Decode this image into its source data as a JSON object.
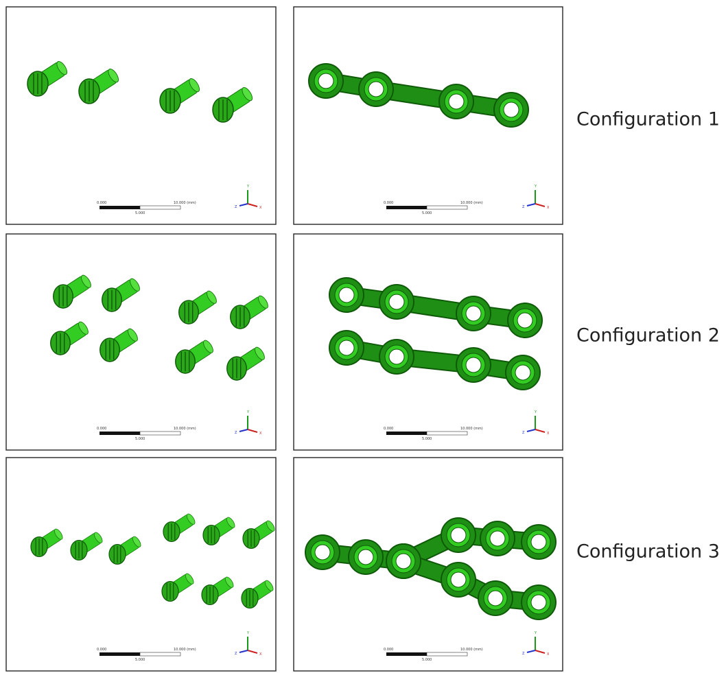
{
  "rows": [
    {
      "label": "Configuration 1",
      "panels": [
        {
          "scale": {
            "start": "0.000",
            "end": "10.000 (mm)",
            "mid": "5.000"
          },
          "axes": {
            "y": "Y",
            "z": "Z",
            "x": "X"
          }
        },
        {
          "scale": {
            "start": "0.000",
            "end": "10.000 (mm)",
            "mid": "5.000"
          },
          "axes": {
            "y": "Y",
            "z": "Z",
            "x": "X"
          }
        }
      ]
    },
    {
      "label": "Configuration 2",
      "panels": [
        {
          "scale": {
            "start": "0.000",
            "end": "10.000 (mm)",
            "mid": "5.000"
          },
          "axes": {
            "y": "Y",
            "z": "Z",
            "x": "X"
          }
        },
        {
          "scale": {
            "start": "0.000",
            "end": "10.000 (mm)",
            "mid": "5.000"
          },
          "axes": {
            "y": "Y",
            "z": "Z",
            "x": "X"
          }
        }
      ]
    },
    {
      "label": "Configuration 3",
      "panels": [
        {
          "scale": {
            "start": "0.000",
            "end": "10.000 (mm)",
            "mid": "5.000"
          },
          "axes": {
            "y": "Y",
            "z": "Z",
            "x": "X"
          }
        },
        {
          "scale": {
            "start": "0.000",
            "end": "10.000 (mm)",
            "mid": "5.000"
          },
          "axes": {
            "y": "Y",
            "z": "Z",
            "x": "X"
          }
        }
      ]
    }
  ]
}
